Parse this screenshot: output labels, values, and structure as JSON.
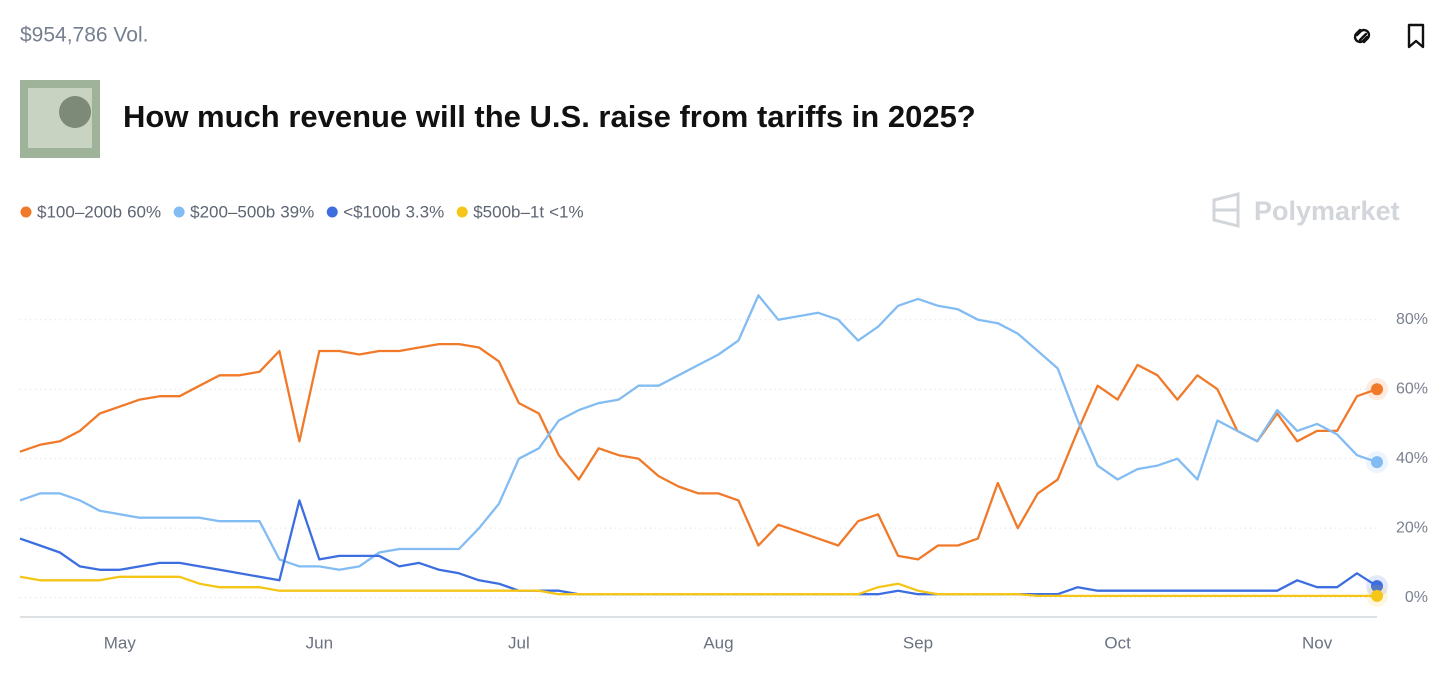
{
  "header": {
    "volume": "$954,786 Vol.",
    "title": "How much revenue will the U.S. raise from tariffs in 2025?",
    "brand": "Polymarket"
  },
  "chart_data": {
    "type": "line",
    "categories": [
      null,
      null,
      null,
      null,
      null,
      "May",
      null,
      null,
      null,
      null,
      null,
      null,
      null,
      null,
      null,
      "Jun",
      null,
      null,
      null,
      null,
      null,
      null,
      null,
      null,
      null,
      "Jul",
      null,
      null,
      null,
      null,
      null,
      null,
      null,
      null,
      null,
      "Aug",
      null,
      null,
      null,
      null,
      null,
      null,
      null,
      null,
      null,
      "Sep",
      null,
      null,
      null,
      null,
      null,
      null,
      null,
      null,
      null,
      "Oct",
      null,
      null,
      null,
      null,
      null,
      null,
      null,
      null,
      null,
      "Nov",
      null,
      null,
      null
    ],
    "ylim": [
      -5,
      90
    ],
    "yticks": [
      {
        "value": 0,
        "label": "0%"
      },
      {
        "value": 20,
        "label": "20%"
      },
      {
        "value": 40,
        "label": "40%"
      },
      {
        "value": 60,
        "label": "60%"
      },
      {
        "value": 80,
        "label": "80%"
      }
    ],
    "grid": true,
    "series": [
      {
        "name": "$100–200b",
        "current": "60%",
        "color": "#f07a2a",
        "values": [
          42,
          44,
          45,
          48,
          53,
          55,
          57,
          58,
          58,
          61,
          64,
          64,
          65,
          71,
          45,
          71,
          71,
          70,
          71,
          71,
          72,
          73,
          73,
          72,
          68,
          56,
          53,
          41,
          34,
          43,
          41,
          40,
          35,
          32,
          30,
          30,
          28,
          15,
          21,
          19,
          17,
          15,
          22,
          24,
          12,
          11,
          15,
          15,
          17,
          33,
          20,
          30,
          34,
          48,
          61,
          57,
          67,
          64,
          57,
          64,
          60,
          48,
          45,
          53,
          45,
          48,
          48,
          58,
          60
        ]
      },
      {
        "name": "$200–500b",
        "current": "39%",
        "color": "#82bcf2",
        "values": [
          28,
          30,
          30,
          28,
          25,
          24,
          23,
          23,
          23,
          23,
          22,
          22,
          22,
          11,
          9,
          9,
          8,
          9,
          13,
          14,
          14,
          14,
          14,
          20,
          27,
          40,
          43,
          51,
          54,
          56,
          57,
          61,
          61,
          64,
          67,
          70,
          74,
          87,
          80,
          81,
          82,
          80,
          74,
          78,
          84,
          86,
          84,
          83,
          80,
          79,
          76,
          71,
          66,
          51,
          38,
          34,
          37,
          38,
          40,
          34,
          51,
          48,
          45,
          54,
          48,
          50,
          47,
          41,
          39
        ]
      },
      {
        "name": "<$100b",
        "current": "3.3%",
        "color": "#3d6ee0",
        "values": [
          17,
          15,
          13,
          9,
          8,
          8,
          9,
          10,
          10,
          9,
          8,
          7,
          6,
          5,
          28,
          11,
          12,
          12,
          12,
          9,
          10,
          8,
          7,
          5,
          4,
          2,
          2,
          2,
          1,
          1,
          1,
          1,
          1,
          1,
          1,
          1,
          1,
          1,
          1,
          1,
          1,
          1,
          1,
          1,
          2,
          1,
          1,
          1,
          1,
          1,
          1,
          1,
          1,
          3,
          2,
          2,
          2,
          2,
          2,
          2,
          2,
          2,
          2,
          2,
          5,
          3,
          3,
          7,
          3.3
        ]
      },
      {
        "name": "$500b–1t",
        "current": "<1%",
        "color": "#f5c518",
        "values": [
          6,
          5,
          5,
          5,
          5,
          6,
          6,
          6,
          6,
          4,
          3,
          3,
          3,
          2,
          2,
          2,
          2,
          2,
          2,
          2,
          2,
          2,
          2,
          2,
          2,
          2,
          2,
          1,
          1,
          1,
          1,
          1,
          1,
          1,
          1,
          1,
          1,
          1,
          1,
          1,
          1,
          1,
          1,
          3,
          4,
          2,
          1,
          1,
          1,
          1,
          1,
          0.5,
          0.5,
          0.5,
          0.5,
          0.5,
          0.5,
          0.5,
          0.5,
          0.5,
          0.5,
          0.5,
          0.5,
          0.5,
          0.5,
          0.5,
          0.5,
          0.5,
          0.5
        ]
      }
    ]
  }
}
